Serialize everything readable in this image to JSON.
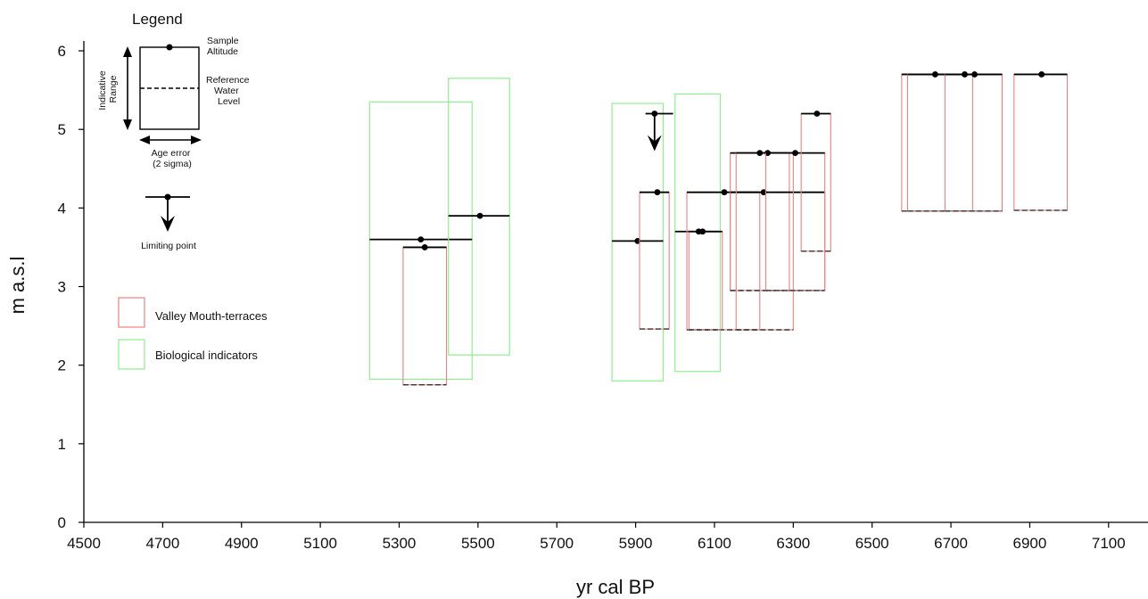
{
  "chart_data": {
    "type": "scatter",
    "xlabel": "yr cal BP",
    "ylabel": "m a.s.l",
    "xlim": [
      4500,
      7200
    ],
    "ylim": [
      0,
      6
    ],
    "xticks": [
      4500,
      4700,
      4900,
      5100,
      5300,
      5500,
      5700,
      5900,
      6100,
      6300,
      6500,
      6700,
      6900,
      7100
    ],
    "yticks": [
      0,
      1,
      2,
      3,
      4,
      5,
      6
    ],
    "grid": false,
    "series": [
      {
        "name": "Valley Mouth-terraces",
        "color": "#f08080",
        "boxes": [
          {
            "x0": 5310,
            "x1": 5420,
            "sample": 3.5,
            "ref": 1.75,
            "ageX": 5365
          },
          {
            "x0": 5910,
            "x1": 5985,
            "sample": 4.2,
            "ref": 2.46,
            "ageX": 5955
          },
          {
            "x0": 5925,
            "x1": 5995,
            "sample": 5.2,
            "ref": 5.2,
            "ageX": 5948,
            "limiting": true
          },
          {
            "x0": 6030,
            "x1": 6215,
            "sample": 4.2,
            "ref": 2.45,
            "ageX": 6125
          },
          {
            "x0": 6035,
            "x1": 6120,
            "sample": 3.7,
            "ref": 2.45,
            "ageX": 6070
          },
          {
            "x0": 6140,
            "x1": 6290,
            "sample": 4.7,
            "ref": 2.95,
            "ageX": 6215
          },
          {
            "x0": 6140,
            "x1": 6380,
            "sample": 4.2,
            "ref": 2.95,
            "ageX": 6225
          },
          {
            "x0": 6155,
            "x1": 6300,
            "sample": 4.7,
            "ref": 2.45,
            "ageX": 6235
          },
          {
            "x0": 6230,
            "x1": 6380,
            "sample": 4.7,
            "ref": 2.95,
            "ageX": 6305
          },
          {
            "x0": 6320,
            "x1": 6395,
            "sample": 5.2,
            "ref": 3.45,
            "ageX": 6360
          },
          {
            "x0": 6575,
            "x1": 6755,
            "sample": 5.7,
            "ref": 3.96,
            "ageX": 6660
          },
          {
            "x0": 6590,
            "x1": 6830,
            "sample": 5.7,
            "ref": 3.96,
            "ageX": 6735
          },
          {
            "x0": 6685,
            "x1": 6830,
            "sample": 5.7,
            "ref": 3.96,
            "ageX": 6760
          },
          {
            "x0": 6860,
            "x1": 6995,
            "sample": 5.7,
            "ref": 3.97,
            "ageX": 6930
          }
        ]
      },
      {
        "name": "Biological indicators",
        "color": "#90ee90",
        "boxes": [
          {
            "x0": 5225,
            "x1": 5485,
            "top": 5.35,
            "bottom": 1.82,
            "sample": 3.6,
            "ageX": 5355
          },
          {
            "x0": 5425,
            "x1": 5580,
            "top": 5.65,
            "bottom": 2.13,
            "sample": 3.9,
            "ageX": 5505
          },
          {
            "x0": 5840,
            "x1": 5970,
            "top": 5.33,
            "bottom": 1.8,
            "sample": 3.58,
            "ageX": 5905
          },
          {
            "x0": 6000,
            "x1": 6115,
            "top": 5.45,
            "bottom": 1.92,
            "sample": 3.7,
            "ageX": 6060
          }
        ]
      }
    ]
  },
  "legend": {
    "title": "Legend",
    "sample_altitude": [
      "Sample",
      "Altitude"
    ],
    "reference_water_level": [
      "Reference",
      "Water",
      "Level"
    ],
    "indicative_range": [
      "Indicative",
      "Range"
    ],
    "age_error": [
      "Age error",
      "(2 sigma)"
    ],
    "limiting_point": "Limiting point",
    "valley_label": "Valley Mouth-terraces",
    "bio_label": "Biological indicators"
  }
}
